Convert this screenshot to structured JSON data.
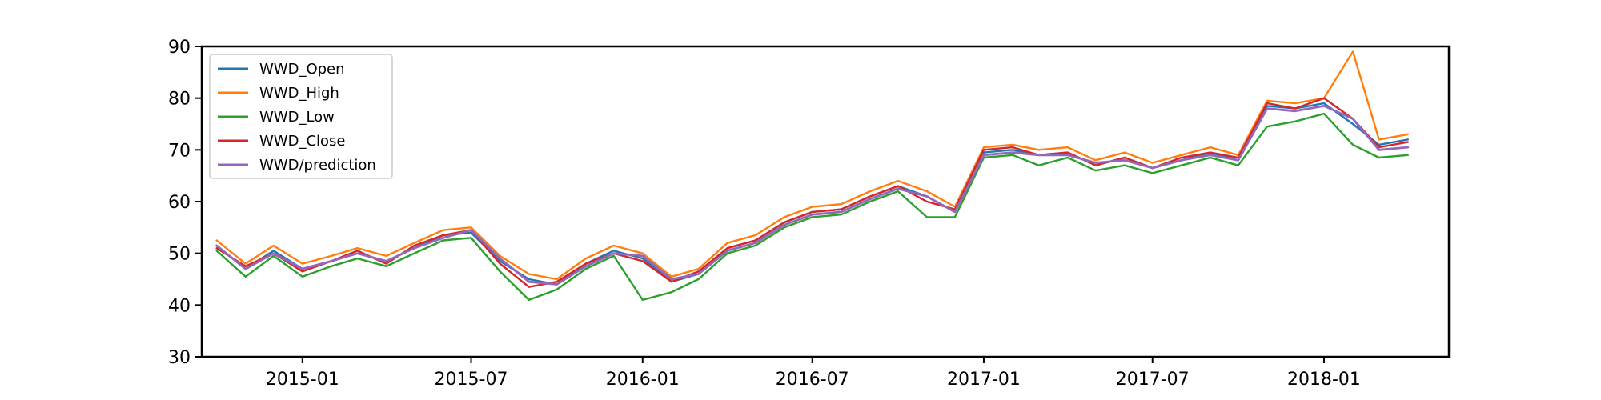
{
  "chart_data": {
    "type": "line",
    "title": "",
    "xlabel": "",
    "ylabel": "",
    "xlim": [
      "2014-09-15",
      "2018-05-15"
    ],
    "ylim": [
      30,
      90
    ],
    "yticks": [
      30,
      40,
      50,
      60,
      70,
      80,
      90
    ],
    "xticks": [
      "2015-01",
      "2015-07",
      "2016-01",
      "2016-07",
      "2017-01",
      "2017-07",
      "2018-01"
    ],
    "grid": false,
    "legend_position": "top-left",
    "x": [
      "2014-10-01",
      "2014-11-01",
      "2014-12-01",
      "2015-01-01",
      "2015-02-01",
      "2015-03-01",
      "2015-04-01",
      "2015-05-01",
      "2015-06-01",
      "2015-07-01",
      "2015-08-01",
      "2015-09-01",
      "2015-10-01",
      "2015-11-01",
      "2015-12-01",
      "2016-01-01",
      "2016-02-01",
      "2016-03-01",
      "2016-04-01",
      "2016-05-01",
      "2016-06-01",
      "2016-07-01",
      "2016-08-01",
      "2016-09-01",
      "2016-10-01",
      "2016-11-01",
      "2016-12-01",
      "2017-01-01",
      "2017-02-01",
      "2017-03-01",
      "2017-04-01",
      "2017-05-01",
      "2017-06-01",
      "2017-07-01",
      "2017-08-01",
      "2017-09-01",
      "2017-10-01",
      "2017-11-01",
      "2017-12-01",
      "2018-01-01",
      "2018-02-01",
      "2018-03-01",
      "2018-04-01"
    ],
    "series": [
      {
        "name": "WWD_Open",
        "color": "#1f77b4",
        "values": [
          51.5,
          47.0,
          50.5,
          47.0,
          48.5,
          50.0,
          48.5,
          51.0,
          53.5,
          54.0,
          48.5,
          45.0,
          44.0,
          48.0,
          50.5,
          49.0,
          44.5,
          46.0,
          51.0,
          52.5,
          56.0,
          58.0,
          58.5,
          61.0,
          63.0,
          61.0,
          58.0,
          69.5,
          70.0,
          69.0,
          69.5,
          67.0,
          68.5,
          66.5,
          68.0,
          69.5,
          68.0,
          78.5,
          78.0,
          79.0,
          75.0,
          71.0,
          72.0
        ]
      },
      {
        "name": "WWD_High",
        "color": "#ff7f0e",
        "values": [
          52.5,
          48.0,
          51.5,
          48.0,
          49.5,
          51.0,
          49.5,
          52.0,
          54.5,
          55.0,
          49.5,
          46.0,
          45.0,
          49.0,
          51.5,
          50.0,
          45.5,
          47.0,
          52.0,
          53.5,
          57.0,
          59.0,
          59.5,
          62.0,
          64.0,
          62.0,
          59.0,
          70.5,
          71.0,
          70.0,
          70.5,
          68.0,
          69.5,
          67.5,
          69.0,
          70.5,
          69.0,
          79.5,
          79.0,
          80.0,
          89.0,
          72.0,
          73.0
        ]
      },
      {
        "name": "WWD_Low",
        "color": "#2ca02c",
        "values": [
          50.5,
          45.5,
          49.5,
          45.5,
          47.5,
          49.0,
          47.5,
          50.0,
          52.5,
          53.0,
          46.5,
          41.0,
          43.0,
          47.0,
          49.5,
          41.0,
          42.5,
          45.0,
          50.0,
          51.5,
          55.0,
          57.0,
          57.5,
          60.0,
          62.0,
          57.0,
          57.0,
          68.5,
          69.0,
          67.0,
          68.5,
          66.0,
          67.0,
          65.5,
          67.0,
          68.5,
          67.0,
          74.5,
          75.5,
          77.0,
          71.0,
          68.5,
          69.0
        ]
      },
      {
        "name": "WWD_Close",
        "color": "#d62728",
        "values": [
          51.0,
          47.5,
          50.0,
          46.5,
          48.5,
          50.5,
          48.0,
          51.5,
          53.5,
          54.5,
          48.0,
          43.5,
          44.5,
          48.0,
          50.0,
          48.5,
          44.5,
          46.5,
          51.0,
          52.5,
          56.0,
          58.0,
          58.5,
          61.0,
          63.0,
          60.0,
          58.5,
          70.0,
          70.5,
          69.0,
          69.5,
          67.0,
          68.5,
          66.5,
          68.5,
          69.5,
          68.5,
          79.0,
          78.0,
          80.0,
          76.0,
          70.5,
          71.5
        ]
      },
      {
        "name": "WWD/prediction",
        "color": "#9467bd",
        "values": [
          51.5,
          47.0,
          50.0,
          47.0,
          48.5,
          50.0,
          48.5,
          51.0,
          53.0,
          54.5,
          49.0,
          44.5,
          44.0,
          47.5,
          50.0,
          49.5,
          45.0,
          46.0,
          50.5,
          52.0,
          55.5,
          57.5,
          58.0,
          60.5,
          62.5,
          61.0,
          58.0,
          69.0,
          69.5,
          69.0,
          69.0,
          67.5,
          68.0,
          66.5,
          68.0,
          69.0,
          68.0,
          78.0,
          77.5,
          78.5,
          76.0,
          70.0,
          70.5
        ]
      }
    ]
  }
}
